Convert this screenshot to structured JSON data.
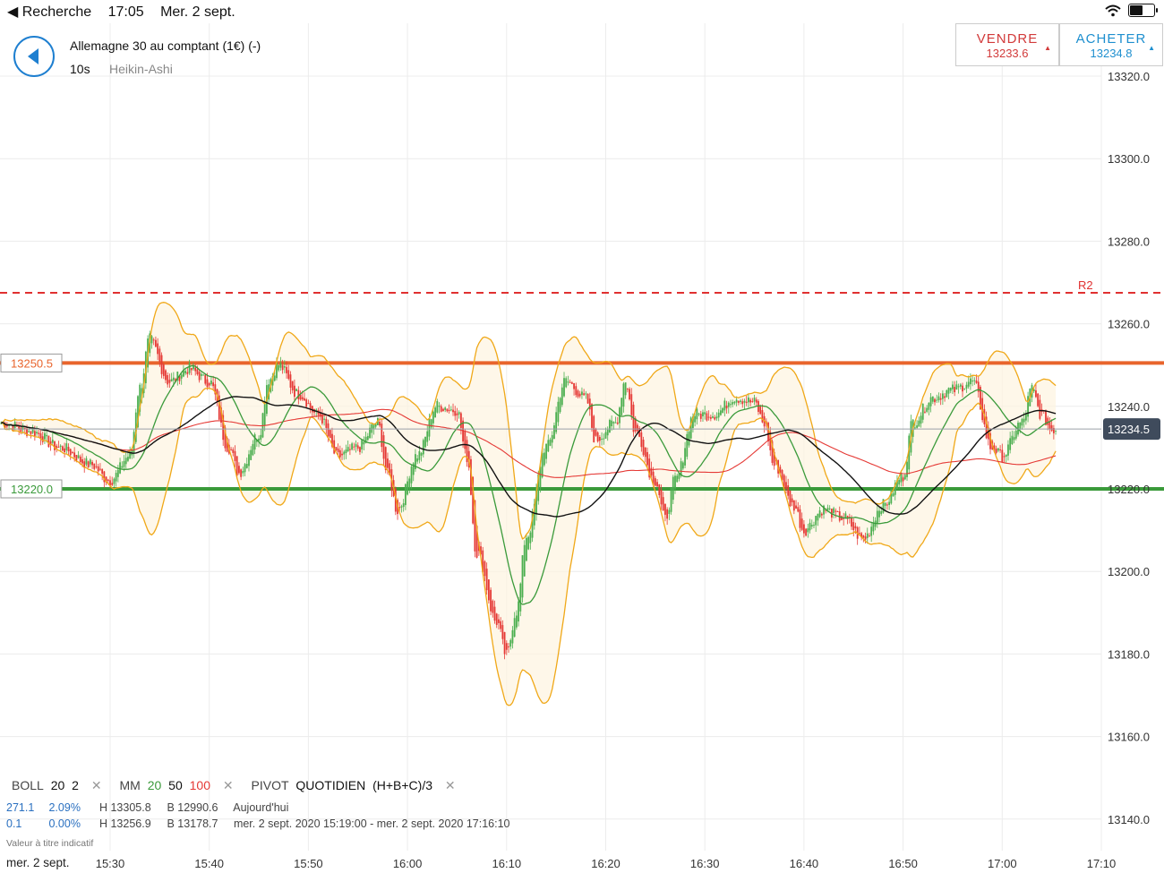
{
  "status_bar": {
    "back_app": "◀ Recherche",
    "time": "17:05",
    "date": "Mer. 2 sept."
  },
  "header": {
    "instrument": "Allemagne 30 au comptant (1€) (-)",
    "timeframe": "10s",
    "chart_type": "Heikin-Ashi"
  },
  "sell": {
    "label": "VENDRE",
    "price": "13233.6",
    "color": "#d23a3a"
  },
  "buy": {
    "label": "ACHETER",
    "price": "13234.8",
    "color": "#1e8fcf"
  },
  "legend": {
    "boll": {
      "label": "BOLL",
      "period": "20",
      "dev": "2"
    },
    "mm": {
      "label": "MM",
      "p1": "20",
      "p2": "50",
      "p3": "100"
    },
    "pivot": {
      "label": "PIVOT",
      "type": "QUOTIDIEN",
      "formula": "(H+B+C)/3"
    },
    "close_icon": "✕"
  },
  "stats": {
    "row1": {
      "change": "271.1",
      "pct": "2.09%",
      "high": "H 13305.8",
      "low": "B 12990.6",
      "period": "Aujourd'hui"
    },
    "row2": {
      "change": "0.1",
      "pct": "0.00%",
      "high": "H 13256.9",
      "low": "B 13178.7",
      "period": "mer. 2 sept. 2020 15:19:00 - mer. 2 sept. 2020 17:16:10"
    }
  },
  "disclaimer": "Valeur à titre indicatif",
  "date_label": "mer. 2 sept.",
  "chart_data": {
    "type": "candlestick",
    "y_ticks": [
      13320.0,
      13300.0,
      13280.0,
      13260.0,
      13240.0,
      13220.0,
      13200.0,
      13180.0,
      13160.0,
      13140.0
    ],
    "x_ticks": [
      "15:30",
      "15:40",
      "15:50",
      "16:00",
      "16:10",
      "16:20",
      "16:30",
      "16:40",
      "16:50",
      "17:00",
      "17:10"
    ],
    "current_price": 13234.5,
    "lines": [
      {
        "name": "R2",
        "value": 13267.5,
        "color": "#e03030",
        "style": "dashed",
        "label": "R2"
      },
      {
        "name": "resistance",
        "value": 13250.5,
        "color": "#e8642c",
        "label": "13250.5"
      },
      {
        "name": "support",
        "value": 13220.0,
        "color": "#3a9a3a",
        "label": "13220.0"
      }
    ],
    "price_path": [
      [
        "15:19",
        13236
      ],
      [
        "15:22",
        13234
      ],
      [
        "15:25",
        13230
      ],
      [
        "15:28",
        13226
      ],
      [
        "15:30",
        13222
      ],
      [
        "15:32",
        13228
      ],
      [
        "15:33",
        13244
      ],
      [
        "15:34",
        13256
      ],
      [
        "15:36",
        13246
      ],
      [
        "15:38",
        13249
      ],
      [
        "15:40",
        13246
      ],
      [
        "15:42",
        13230
      ],
      [
        "15:43",
        13224
      ],
      [
        "15:45",
        13233
      ],
      [
        "15:46",
        13246
      ],
      [
        "15:47",
        13250
      ],
      [
        "15:49",
        13243
      ],
      [
        "15:51",
        13238
      ],
      [
        "15:53",
        13228
      ],
      [
        "15:55",
        13230
      ],
      [
        "15:57",
        13236
      ],
      [
        "15:58",
        13224
      ],
      [
        "15:59",
        13215
      ],
      [
        "16:01",
        13228
      ],
      [
        "16:03",
        13240
      ],
      [
        "16:05",
        13239
      ],
      [
        "16:06",
        13228
      ],
      [
        "16:07",
        13205
      ],
      [
        "16:09",
        13188
      ],
      [
        "16:10",
        13180
      ],
      [
        "16:11",
        13190
      ],
      [
        "16:12",
        13208
      ],
      [
        "16:14",
        13230
      ],
      [
        "16:16",
        13246
      ],
      [
        "16:18",
        13242
      ],
      [
        "16:19",
        13232
      ],
      [
        "16:21",
        13236
      ],
      [
        "16:22",
        13246
      ],
      [
        "16:23",
        13234
      ],
      [
        "16:25",
        13222
      ],
      [
        "16:26",
        13213
      ],
      [
        "16:27",
        13222
      ],
      [
        "16:29",
        13238
      ],
      [
        "16:31",
        13238
      ],
      [
        "16:33",
        13242
      ],
      [
        "16:35",
        13241
      ],
      [
        "16:36",
        13236
      ],
      [
        "16:37",
        13226
      ],
      [
        "16:39",
        13216
      ],
      [
        "16:40",
        13210
      ],
      [
        "16:42",
        13215
      ],
      [
        "16:44",
        13213
      ],
      [
        "16:46",
        13208
      ],
      [
        "16:48",
        13216
      ],
      [
        "16:50",
        13223
      ],
      [
        "16:51",
        13236
      ],
      [
        "16:53",
        13242
      ],
      [
        "16:55",
        13244
      ],
      [
        "16:57",
        13246
      ],
      [
        "16:59",
        13230
      ],
      [
        "17:00",
        13228
      ],
      [
        "17:02",
        13236
      ],
      [
        "17:03",
        13244
      ],
      [
        "17:04",
        13238
      ],
      [
        "17:05",
        13234.5
      ]
    ],
    "indicators": [
      "BOLL 20 2",
      "MM 20",
      "MM 50",
      "MM 100"
    ],
    "colors": {
      "up": "#4caf50",
      "down": "#e53935",
      "boll": "#f0a818",
      "mm20": "#3a9a3a",
      "mm50": "#111111",
      "mm100": "#e53935"
    }
  }
}
